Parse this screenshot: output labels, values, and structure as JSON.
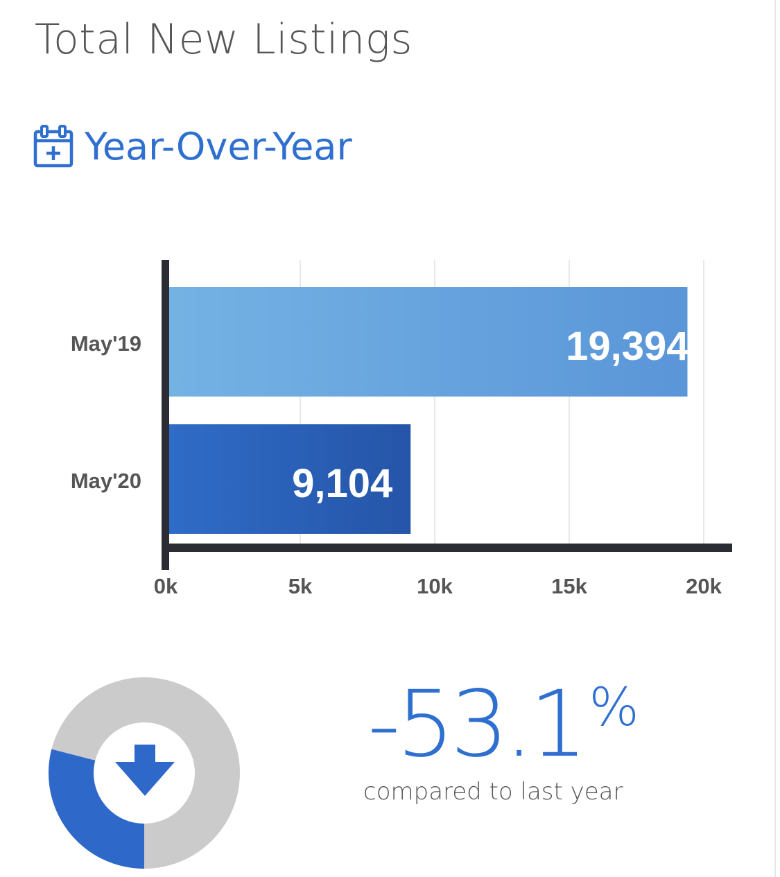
{
  "header": {
    "title": "Total New Listings",
    "subtitle": "Year-Over-Year",
    "subtitle_icon": "calendar-plus-icon"
  },
  "chart_data": {
    "type": "bar",
    "orientation": "horizontal",
    "categories": [
      "May'19",
      "May'20"
    ],
    "values": [
      19394,
      9104
    ],
    "value_labels": [
      "19,394",
      "9,104"
    ],
    "ticks": [
      0,
      5000,
      10000,
      15000,
      20000
    ],
    "tick_labels": [
      "0k",
      "5k",
      "10k",
      "15k",
      "20k"
    ],
    "xlim": [
      0,
      20000
    ],
    "grid": true,
    "colors": [
      "#6aa7e0",
      "#2a5fb8"
    ]
  },
  "summary": {
    "change_value": "-53.1",
    "change_unit": "%",
    "caption": "compared to last year",
    "icon": "arrow-down-icon",
    "accent_color": "#2f6fcf"
  }
}
